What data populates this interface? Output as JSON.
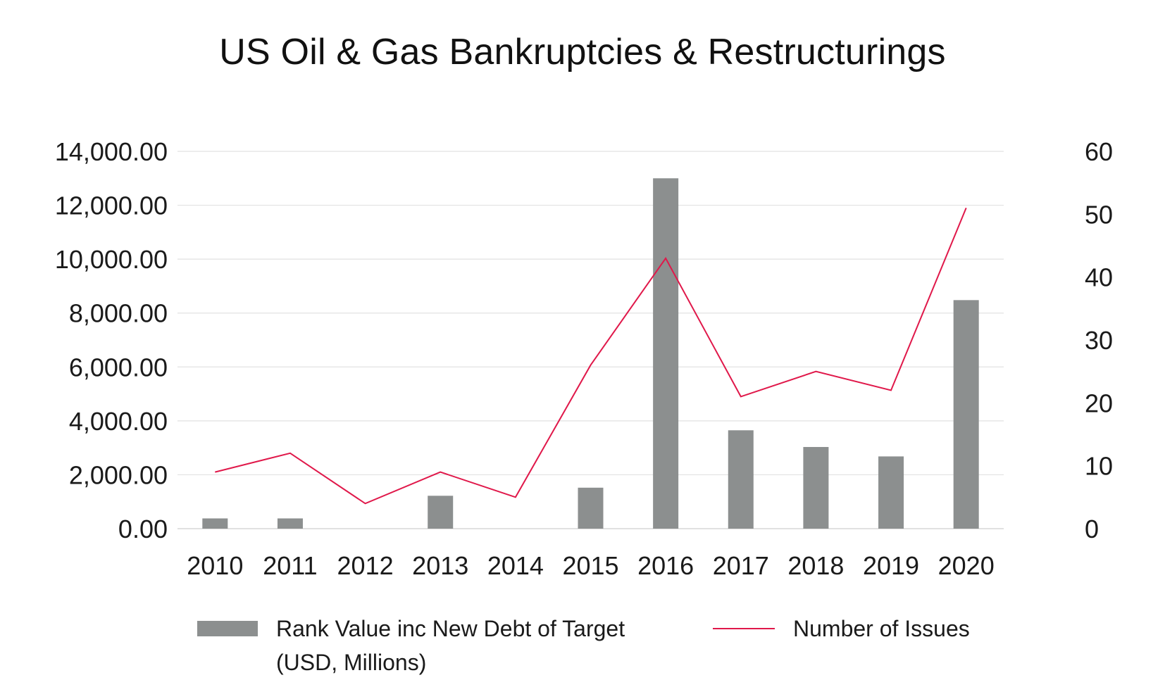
{
  "chart_data": {
    "type": "bar",
    "title": "US Oil & Gas Bankruptcies & Restructurings",
    "categories": [
      "2010",
      "2011",
      "2012",
      "2013",
      "2014",
      "2015",
      "2016",
      "2017",
      "2018",
      "2019",
      "2020"
    ],
    "series": [
      {
        "name": "Rank Value inc New Debt of Target (USD, Millions)",
        "type": "bar",
        "axis": "left",
        "color": "#8c8f8f",
        "values": [
          380,
          380,
          0,
          1220,
          0,
          1520,
          13000,
          3650,
          3030,
          2680,
          8480
        ]
      },
      {
        "name": "Number of Issues",
        "type": "line",
        "axis": "right",
        "color": "#e0184a",
        "values": [
          9,
          12,
          4,
          9,
          5,
          26,
          43,
          21,
          25,
          22,
          51
        ]
      }
    ],
    "y_left": {
      "ylim": [
        0,
        14000
      ],
      "ticks": [
        "0.00",
        "2,000.00",
        "4,000.00",
        "6,000.00",
        "8,000.00",
        "10,000.00",
        "12,000.00",
        "14,000.00"
      ]
    },
    "y_right": {
      "ylim": [
        0,
        60
      ],
      "ticks": [
        "0",
        "10",
        "20",
        "30",
        "40",
        "50",
        "60"
      ]
    },
    "grid": true,
    "legend": {
      "position": "bottom",
      "items": [
        {
          "lines": [
            "Rank Value inc New Debt of Target",
            "(USD, Millions)"
          ],
          "symbol": "bar",
          "color": "#8c8f8f"
        },
        {
          "lines": [
            "Number of Issues"
          ],
          "symbol": "line",
          "color": "#e0184a"
        }
      ]
    }
  }
}
